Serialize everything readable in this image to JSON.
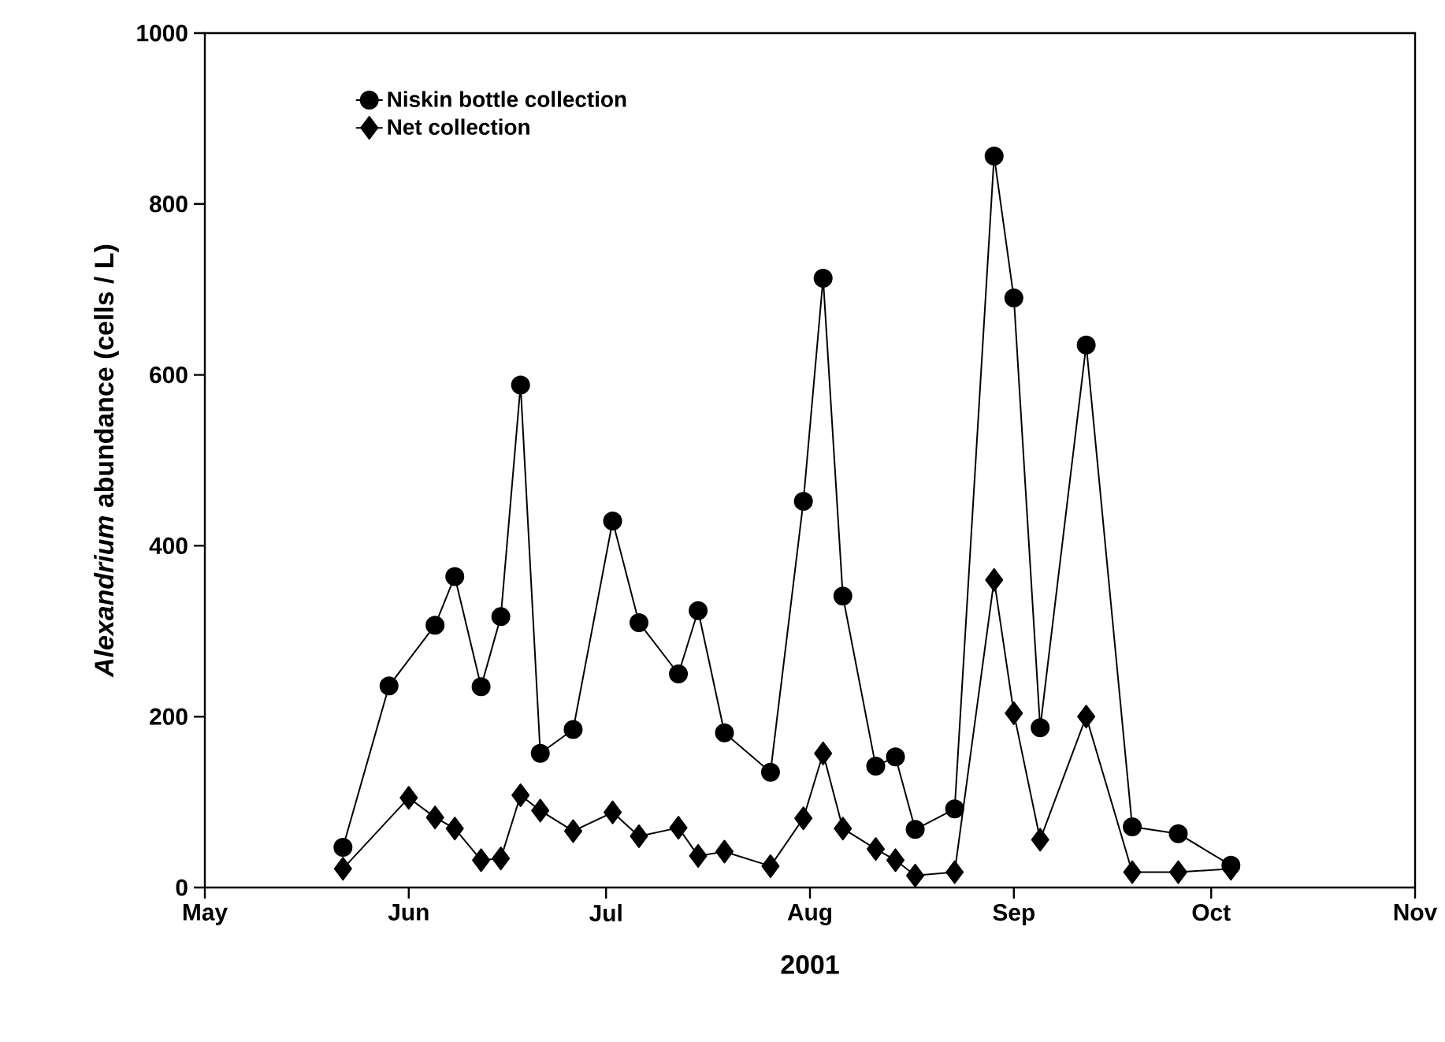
{
  "chart_data": {
    "type": "line",
    "xlabel": "2001",
    "ylabel": "*Alexandrium* abundance (cells / L)",
    "xlim": [
      "2001-05-01",
      "2001-11-01"
    ],
    "xticks": [
      {
        "value": "2001-05-01",
        "label": "May"
      },
      {
        "value": "2001-06-01",
        "label": "Jun"
      },
      {
        "value": "2001-07-01",
        "label": "Jul"
      },
      {
        "value": "2001-08-01",
        "label": "Aug"
      },
      {
        "value": "2001-09-01",
        "label": "Sep"
      },
      {
        "value": "2001-10-01",
        "label": "Oct"
      },
      {
        "value": "2001-11-01",
        "label": "Nov"
      }
    ],
    "ylim": [
      0,
      1000
    ],
    "yticks": [
      0,
      200,
      400,
      600,
      800,
      1000
    ],
    "grid": false,
    "legend": "top left",
    "line_style": "solid",
    "series": [
      {
        "name": "Niskin bottle collection",
        "color": "#000000",
        "marker": "circle",
        "x": [
          "2001-05-22",
          "2001-05-29",
          "2001-06-05",
          "2001-06-08",
          "2001-06-12",
          "2001-06-15",
          "2001-06-18",
          "2001-06-21",
          "2001-06-26",
          "2001-07-02",
          "2001-07-06",
          "2001-07-12",
          "2001-07-15",
          "2001-07-19",
          "2001-07-26",
          "2001-07-31",
          "2001-08-03",
          "2001-08-06",
          "2001-08-11",
          "2001-08-14",
          "2001-08-17",
          "2001-08-23",
          "2001-08-29",
          "2001-09-01",
          "2001-09-05",
          "2001-09-12",
          "2001-09-19",
          "2001-09-26",
          "2001-10-04"
        ],
        "values": [
          47,
          236,
          307,
          364,
          235,
          317,
          588,
          157,
          185,
          429,
          310,
          250,
          324,
          181,
          135,
          452,
          713,
          341,
          142,
          153,
          68,
          92,
          856,
          690,
          187,
          635,
          71,
          63,
          26
        ]
      },
      {
        "name": "Net collection",
        "color": "#000000",
        "marker": "diamond",
        "x": [
          "2001-05-22",
          "2001-06-01",
          "2001-06-05",
          "2001-06-08",
          "2001-06-12",
          "2001-06-15",
          "2001-06-18",
          "2001-06-21",
          "2001-06-26",
          "2001-07-02",
          "2001-07-06",
          "2001-07-12",
          "2001-07-15",
          "2001-07-19",
          "2001-07-26",
          "2001-07-31",
          "2001-08-03",
          "2001-08-06",
          "2001-08-11",
          "2001-08-14",
          "2001-08-17",
          "2001-08-23",
          "2001-08-29",
          "2001-09-01",
          "2001-09-05",
          "2001-09-12",
          "2001-09-19",
          "2001-09-26",
          "2001-10-04"
        ],
        "values": [
          22,
          105,
          82,
          69,
          32,
          34,
          108,
          90,
          66,
          88,
          60,
          70,
          37,
          42,
          25,
          81,
          157,
          69,
          45,
          32,
          14,
          18,
          360,
          204,
          56,
          200,
          18,
          18,
          22
        ]
      }
    ]
  }
}
